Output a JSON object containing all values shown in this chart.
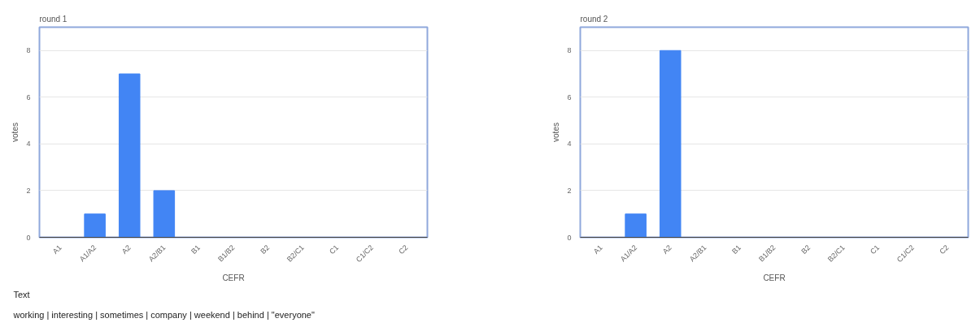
{
  "chart_data": [
    {
      "type": "bar",
      "title": "round 1",
      "xlabel": "CEFR",
      "ylabel": "votes",
      "categories": [
        "A1",
        "A1/A2",
        "A2",
        "A2/B1",
        "B1",
        "B1/B2",
        "B2",
        "B2/C1",
        "C1",
        "C1/C2",
        "C2"
      ],
      "values": [
        0,
        1,
        7,
        2,
        0,
        0,
        0,
        0,
        0,
        0,
        0
      ],
      "color": "#4285f4",
      "ylim": [
        0,
        9
      ],
      "yticks": [
        0,
        2,
        4,
        6,
        8
      ],
      "grid": "y"
    },
    {
      "type": "bar",
      "title": "round 2",
      "xlabel": "CEFR",
      "ylabel": "votes",
      "categories": [
        "A1",
        "A1/A2",
        "A2",
        "A2/B1",
        "B1",
        "B1/B2",
        "B2",
        "B2/C1",
        "C1",
        "C1/C2",
        "C2"
      ],
      "values": [
        0,
        1,
        8,
        0,
        0,
        0,
        0,
        0,
        0,
        0,
        0
      ],
      "color": "#4285f4",
      "ylim": [
        0,
        9
      ],
      "yticks": [
        0,
        2,
        4,
        6,
        8
      ],
      "grid": "y"
    },
    {
      "type": "other",
      "annotations": [
        "Text",
        "working | interesting | sometimes | company | weekend | behind | \"everyone\""
      ]
    }
  ]
}
